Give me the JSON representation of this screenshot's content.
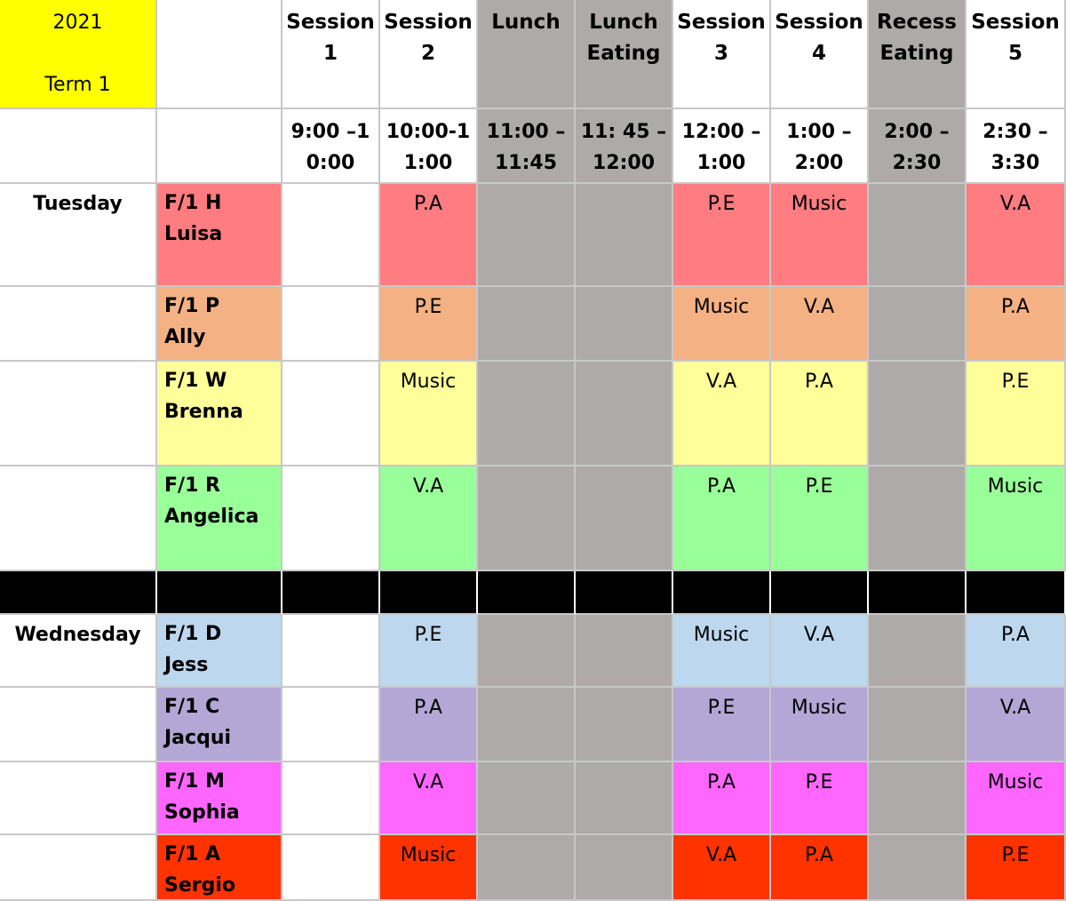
{
  "corner": {
    "year": "2021",
    "term": "Term 1"
  },
  "columns": [
    {
      "title": [
        "Session",
        "1"
      ],
      "time": [
        "9:00 –1",
        "0:00"
      ],
      "break": false
    },
    {
      "title": [
        "Session",
        "2"
      ],
      "time": [
        "10:00-1",
        "1:00"
      ],
      "break": false
    },
    {
      "title": [
        "Lunch"
      ],
      "time": [
        "11:00 –",
        "11:45"
      ],
      "break": true
    },
    {
      "title": [
        "Lunch",
        "Eating"
      ],
      "time": [
        "11: 45 –",
        "12:00"
      ],
      "break": true
    },
    {
      "title": [
        "Session",
        "3"
      ],
      "time": [
        "12:00 –",
        "1:00"
      ],
      "break": false
    },
    {
      "title": [
        "Session",
        "4"
      ],
      "time": [
        "1:00 –",
        "2:00"
      ],
      "break": false
    },
    {
      "title": [
        "Recess",
        "Eating"
      ],
      "time": [
        "2:00 –",
        "2:30"
      ],
      "break": true
    },
    {
      "title": [
        "Session",
        "5"
      ],
      "time": [
        "2:30 –",
        "3:30"
      ],
      "break": false
    }
  ],
  "colors": {
    "corner": "#ffff00",
    "break": "#aeaaaa",
    "divider": "#000000",
    "luisa": "#ff7c80",
    "ally": "#f4b183",
    "brenna": "#ffff99",
    "angelica": "#99ff99",
    "jess": "#bdd7ee",
    "jacqui": "#b4a7d6",
    "sophia": "#ff66ff",
    "sergio": "#ff3300"
  },
  "days": [
    {
      "name": "Tuesday",
      "rows": [
        {
          "class": [
            "F/1 H",
            "Luisa"
          ],
          "color": "luisa",
          "sessions": [
            "",
            "P.A",
            "P.E",
            "Music",
            "V.A"
          ]
        },
        {
          "class": [
            "F/1 P",
            "Ally"
          ],
          "color": "ally",
          "sessions": [
            "",
            "P.E",
            "Music",
            "V.A",
            "P.A"
          ]
        },
        {
          "class": [
            "F/1 W",
            "Brenna"
          ],
          "color": "brenna",
          "sessions": [
            "",
            "Music",
            "V.A",
            "P.A",
            "P.E"
          ]
        },
        {
          "class": [
            "F/1 R",
            "Angelica"
          ],
          "color": "angelica",
          "sessions": [
            "",
            "V.A",
            "P.A",
            "P.E",
            "Music"
          ]
        }
      ]
    },
    {
      "name": "Wednesday",
      "rows": [
        {
          "class": [
            "F/1 D",
            "Jess"
          ],
          "color": "jess",
          "sessions": [
            "",
            "P.E",
            "Music",
            "V.A",
            "P.A"
          ]
        },
        {
          "class": [
            "F/1 C",
            "Jacqui"
          ],
          "color": "jacqui",
          "sessions": [
            "",
            "P.A",
            "P.E",
            "Music",
            "V.A"
          ]
        },
        {
          "class": [
            "F/1 M",
            "Sophia"
          ],
          "color": "sophia",
          "sessions": [
            "",
            "V.A",
            "P.A",
            "P.E",
            "Music"
          ]
        },
        {
          "class": [
            "F/1 A",
            "Sergio"
          ],
          "color": "sergio",
          "sessions": [
            "",
            "Music",
            "V.A",
            "P.A",
            "P.E"
          ]
        }
      ]
    }
  ]
}
